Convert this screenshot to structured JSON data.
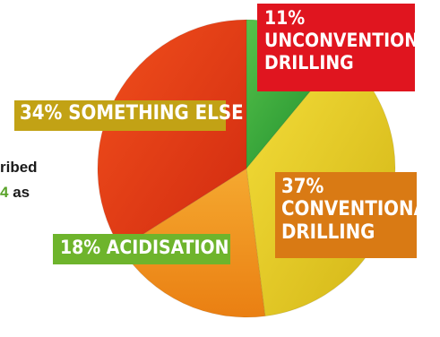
{
  "side_text": {
    "line1": "ribed",
    "line2_highlight": "4",
    "line2_rest": " as"
  },
  "chart_data": {
    "type": "pie",
    "title": "",
    "slices": [
      {
        "label": "Unconventional Drilling",
        "value": 11,
        "color": "#2aa63a",
        "callout_color": "#e0151f",
        "callout": [
          "11%",
          "UNCONVENTIONAL",
          "DRILLING"
        ]
      },
      {
        "label": "Conventional Drilling",
        "value": 37,
        "color": "#ecc81e",
        "callout_color": "#d97a14",
        "callout": [
          "37%",
          "CONVENTIONAL",
          "DRILLING"
        ]
      },
      {
        "label": "Acidisation",
        "value": 18,
        "color": "#f29a1e",
        "callout_color": "#6eb42c",
        "callout": [
          "18% ACIDISATION"
        ]
      },
      {
        "label": "Something Else",
        "value": 34,
        "color": "#e63e16",
        "callout_color": "#c2a215",
        "callout": [
          "34% SOMETHING ELSE"
        ]
      }
    ]
  }
}
